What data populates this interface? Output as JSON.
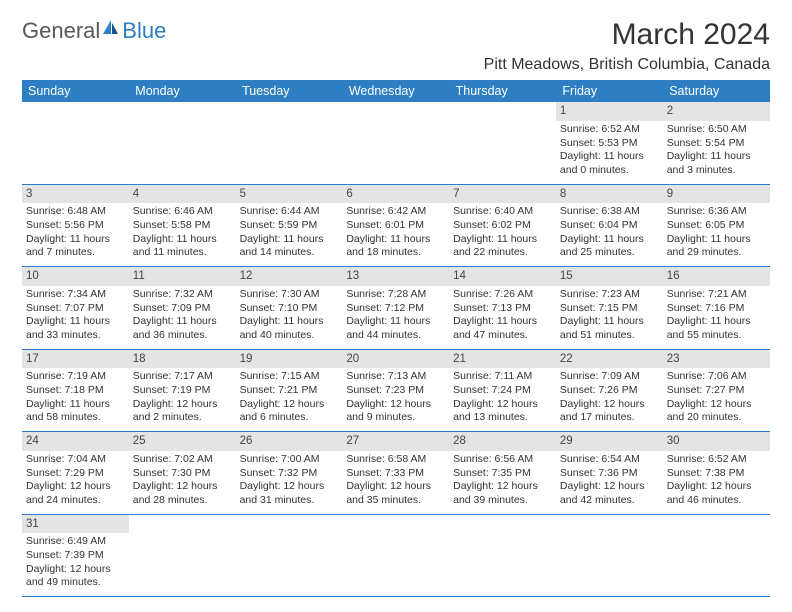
{
  "logo": {
    "part1": "General",
    "part2": "Blue"
  },
  "title": "March 2024",
  "location": "Pitt Meadows, British Columbia, Canada",
  "colors": {
    "header_bg": "#2d7ec2",
    "header_text": "#ffffff",
    "daynum_bg": "#e4e4e4",
    "border": "#2d7ec2",
    "text": "#333333",
    "logo_gray": "#585858",
    "logo_blue": "#2d7ec2"
  },
  "typography": {
    "title_fontsize": 30,
    "location_fontsize": 16,
    "weekday_fontsize": 12.5,
    "daynum_fontsize": 11.5,
    "cell_fontsize": 10.5,
    "font_family": "Arial"
  },
  "weekdays": [
    "Sunday",
    "Monday",
    "Tuesday",
    "Wednesday",
    "Thursday",
    "Friday",
    "Saturday"
  ],
  "weeks": [
    [
      null,
      null,
      null,
      null,
      null,
      {
        "n": "1",
        "sunrise": "Sunrise: 6:52 AM",
        "sunset": "Sunset: 5:53 PM",
        "daylight": "Daylight: 11 hours and 0 minutes."
      },
      {
        "n": "2",
        "sunrise": "Sunrise: 6:50 AM",
        "sunset": "Sunset: 5:54 PM",
        "daylight": "Daylight: 11 hours and 3 minutes."
      }
    ],
    [
      {
        "n": "3",
        "sunrise": "Sunrise: 6:48 AM",
        "sunset": "Sunset: 5:56 PM",
        "daylight": "Daylight: 11 hours and 7 minutes."
      },
      {
        "n": "4",
        "sunrise": "Sunrise: 6:46 AM",
        "sunset": "Sunset: 5:58 PM",
        "daylight": "Daylight: 11 hours and 11 minutes."
      },
      {
        "n": "5",
        "sunrise": "Sunrise: 6:44 AM",
        "sunset": "Sunset: 5:59 PM",
        "daylight": "Daylight: 11 hours and 14 minutes."
      },
      {
        "n": "6",
        "sunrise": "Sunrise: 6:42 AM",
        "sunset": "Sunset: 6:01 PM",
        "daylight": "Daylight: 11 hours and 18 minutes."
      },
      {
        "n": "7",
        "sunrise": "Sunrise: 6:40 AM",
        "sunset": "Sunset: 6:02 PM",
        "daylight": "Daylight: 11 hours and 22 minutes."
      },
      {
        "n": "8",
        "sunrise": "Sunrise: 6:38 AM",
        "sunset": "Sunset: 6:04 PM",
        "daylight": "Daylight: 11 hours and 25 minutes."
      },
      {
        "n": "9",
        "sunrise": "Sunrise: 6:36 AM",
        "sunset": "Sunset: 6:05 PM",
        "daylight": "Daylight: 11 hours and 29 minutes."
      }
    ],
    [
      {
        "n": "10",
        "sunrise": "Sunrise: 7:34 AM",
        "sunset": "Sunset: 7:07 PM",
        "daylight": "Daylight: 11 hours and 33 minutes."
      },
      {
        "n": "11",
        "sunrise": "Sunrise: 7:32 AM",
        "sunset": "Sunset: 7:09 PM",
        "daylight": "Daylight: 11 hours and 36 minutes."
      },
      {
        "n": "12",
        "sunrise": "Sunrise: 7:30 AM",
        "sunset": "Sunset: 7:10 PM",
        "daylight": "Daylight: 11 hours and 40 minutes."
      },
      {
        "n": "13",
        "sunrise": "Sunrise: 7:28 AM",
        "sunset": "Sunset: 7:12 PM",
        "daylight": "Daylight: 11 hours and 44 minutes."
      },
      {
        "n": "14",
        "sunrise": "Sunrise: 7:26 AM",
        "sunset": "Sunset: 7:13 PM",
        "daylight": "Daylight: 11 hours and 47 minutes."
      },
      {
        "n": "15",
        "sunrise": "Sunrise: 7:23 AM",
        "sunset": "Sunset: 7:15 PM",
        "daylight": "Daylight: 11 hours and 51 minutes."
      },
      {
        "n": "16",
        "sunrise": "Sunrise: 7:21 AM",
        "sunset": "Sunset: 7:16 PM",
        "daylight": "Daylight: 11 hours and 55 minutes."
      }
    ],
    [
      {
        "n": "17",
        "sunrise": "Sunrise: 7:19 AM",
        "sunset": "Sunset: 7:18 PM",
        "daylight": "Daylight: 11 hours and 58 minutes."
      },
      {
        "n": "18",
        "sunrise": "Sunrise: 7:17 AM",
        "sunset": "Sunset: 7:19 PM",
        "daylight": "Daylight: 12 hours and 2 minutes."
      },
      {
        "n": "19",
        "sunrise": "Sunrise: 7:15 AM",
        "sunset": "Sunset: 7:21 PM",
        "daylight": "Daylight: 12 hours and 6 minutes."
      },
      {
        "n": "20",
        "sunrise": "Sunrise: 7:13 AM",
        "sunset": "Sunset: 7:23 PM",
        "daylight": "Daylight: 12 hours and 9 minutes."
      },
      {
        "n": "21",
        "sunrise": "Sunrise: 7:11 AM",
        "sunset": "Sunset: 7:24 PM",
        "daylight": "Daylight: 12 hours and 13 minutes."
      },
      {
        "n": "22",
        "sunrise": "Sunrise: 7:09 AM",
        "sunset": "Sunset: 7:26 PM",
        "daylight": "Daylight: 12 hours and 17 minutes."
      },
      {
        "n": "23",
        "sunrise": "Sunrise: 7:06 AM",
        "sunset": "Sunset: 7:27 PM",
        "daylight": "Daylight: 12 hours and 20 minutes."
      }
    ],
    [
      {
        "n": "24",
        "sunrise": "Sunrise: 7:04 AM",
        "sunset": "Sunset: 7:29 PM",
        "daylight": "Daylight: 12 hours and 24 minutes."
      },
      {
        "n": "25",
        "sunrise": "Sunrise: 7:02 AM",
        "sunset": "Sunset: 7:30 PM",
        "daylight": "Daylight: 12 hours and 28 minutes."
      },
      {
        "n": "26",
        "sunrise": "Sunrise: 7:00 AM",
        "sunset": "Sunset: 7:32 PM",
        "daylight": "Daylight: 12 hours and 31 minutes."
      },
      {
        "n": "27",
        "sunrise": "Sunrise: 6:58 AM",
        "sunset": "Sunset: 7:33 PM",
        "daylight": "Daylight: 12 hours and 35 minutes."
      },
      {
        "n": "28",
        "sunrise": "Sunrise: 6:56 AM",
        "sunset": "Sunset: 7:35 PM",
        "daylight": "Daylight: 12 hours and 39 minutes."
      },
      {
        "n": "29",
        "sunrise": "Sunrise: 6:54 AM",
        "sunset": "Sunset: 7:36 PM",
        "daylight": "Daylight: 12 hours and 42 minutes."
      },
      {
        "n": "30",
        "sunrise": "Sunrise: 6:52 AM",
        "sunset": "Sunset: 7:38 PM",
        "daylight": "Daylight: 12 hours and 46 minutes."
      }
    ],
    [
      {
        "n": "31",
        "sunrise": "Sunrise: 6:49 AM",
        "sunset": "Sunset: 7:39 PM",
        "daylight": "Daylight: 12 hours and 49 minutes."
      },
      null,
      null,
      null,
      null,
      null,
      null
    ]
  ]
}
